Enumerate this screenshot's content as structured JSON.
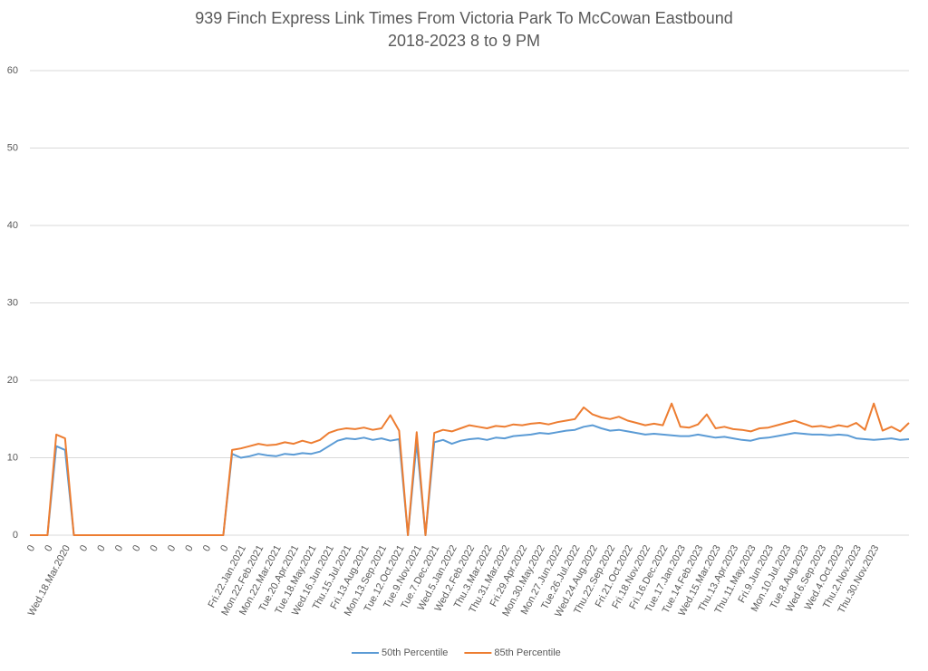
{
  "chart_data": {
    "type": "line",
    "title": "939 Finch Express Link Times From Victoria Park To McCowan Eastbound",
    "subtitle": "2018-2023 8 to 9 PM",
    "categories": [
      "0",
      null,
      "0",
      null,
      "Wed.18.Mar.2020",
      null,
      "0",
      null,
      "0",
      null,
      "0",
      null,
      "0",
      null,
      "0",
      null,
      "0",
      null,
      "0",
      null,
      "0",
      null,
      "0",
      null,
      "Fri.22.Jan.2021",
      null,
      "Mon.22.Feb.2021",
      null,
      "Mon.22.Mar.2021",
      null,
      "Tue.20.Apr.2021",
      null,
      "Tue.18.May.2021",
      null,
      "Wed.16.Jun.2021",
      null,
      "Thu.15.Jul.2021",
      null,
      "Fri.13.Aug.2021",
      null,
      "Mon.13.Sep.2021",
      null,
      "Tue.12.Oct.2021",
      null,
      "Tue.9.Nov.2021",
      null,
      "Tue.7.Dec.2021",
      null,
      "Wed.5.Jan.2022",
      null,
      "Wed.2.Feb.2022",
      null,
      "Thu.3.Mar.2022",
      null,
      "Thu.31.Mar.2022",
      null,
      "Fri.29.Apr.2022",
      null,
      "Mon.30.May.2022",
      null,
      "Mon.27.Jun.2022",
      null,
      "Tue.26.Jul.2022",
      null,
      "Wed.24.Aug.2022",
      null,
      "Thu.22.Sep.2022",
      null,
      "Fri.21.Oct.2022",
      null,
      "Fri.18.Nov.2022",
      null,
      "Fri.16.Dec.2022",
      null,
      "Tue.17.Jan.2023",
      null,
      "Tue.14.Feb.2023",
      null,
      "Wed.15.Mar.2023",
      null,
      "Thu.13.Apr.2023",
      null,
      "Thu.11.May.2023",
      null,
      "Fri.9.Jun.2023",
      null,
      "Mon.10.Jul.2023",
      null,
      "Tue.8.Aug.2023",
      null,
      "Wed.6.Sep.2023",
      null,
      "Wed.4.Oct.2023",
      null,
      "Thu.2.Nov.2023",
      null,
      "Thu.30.Nov.2023",
      null,
      null,
      null,
      null
    ],
    "series": [
      {
        "name": "50th Percentile",
        "color": "#5b9bd5",
        "values": [
          0,
          0,
          0,
          11.5,
          11,
          0,
          0,
          0,
          0,
          0,
          0,
          0,
          0,
          0,
          0,
          0,
          0,
          0,
          0,
          0,
          0,
          0,
          0,
          10.5,
          10,
          10.2,
          10.5,
          10.3,
          10.2,
          10.5,
          10.4,
          10.6,
          10.5,
          10.8,
          11.5,
          12.2,
          12.5,
          12.4,
          12.6,
          12.3,
          12.5,
          12.2,
          12.4,
          0,
          12.0,
          0,
          12.0,
          12.3,
          11.8,
          12.2,
          12.4,
          12.5,
          12.3,
          12.6,
          12.5,
          12.8,
          12.9,
          13.0,
          13.2,
          13.1,
          13.3,
          13.5,
          13.6,
          14.0,
          14.2,
          13.8,
          13.5,
          13.6,
          13.4,
          13.2,
          13.0,
          13.1,
          13.0,
          12.9,
          12.8,
          12.8,
          13.0,
          12.8,
          12.6,
          12.7,
          12.5,
          12.3,
          12.2,
          12.5,
          12.6,
          12.8,
          13.0,
          13.2,
          13.1,
          13.0,
          13.0,
          12.9,
          13.0,
          12.9,
          12.5,
          12.4,
          12.3,
          12.4,
          12.5,
          12.3,
          12.4
        ]
      },
      {
        "name": "85th Percentile",
        "color": "#ed7d31",
        "values": [
          0,
          0,
          0,
          13,
          12.5,
          0,
          0,
          0,
          0,
          0,
          0,
          0,
          0,
          0,
          0,
          0,
          0,
          0,
          0,
          0,
          0,
          0,
          0,
          11,
          11.2,
          11.5,
          11.8,
          11.6,
          11.7,
          12.0,
          11.8,
          12.2,
          11.9,
          12.3,
          13.2,
          13.6,
          13.8,
          13.7,
          13.9,
          13.6,
          13.8,
          15.5,
          13.5,
          0,
          13.3,
          0,
          13.2,
          13.6,
          13.4,
          13.8,
          14.2,
          14.0,
          13.8,
          14.1,
          14.0,
          14.3,
          14.2,
          14.4,
          14.5,
          14.3,
          14.6,
          14.8,
          15.0,
          16.5,
          15.6,
          15.2,
          15.0,
          15.3,
          14.8,
          14.5,
          14.2,
          14.4,
          14.2,
          17.0,
          14.0,
          13.9,
          14.3,
          15.6,
          13.8,
          14.0,
          13.7,
          13.6,
          13.4,
          13.8,
          13.9,
          14.2,
          14.5,
          14.8,
          14.4,
          14.0,
          14.1,
          13.9,
          14.2,
          14.0,
          14.5,
          13.6,
          17.0,
          13.5,
          14.0,
          13.4,
          14.5
        ]
      }
    ],
    "ylim": [
      0,
      60
    ],
    "yticks": [
      0,
      10,
      20,
      30,
      40,
      50,
      60
    ],
    "grid": true
  }
}
